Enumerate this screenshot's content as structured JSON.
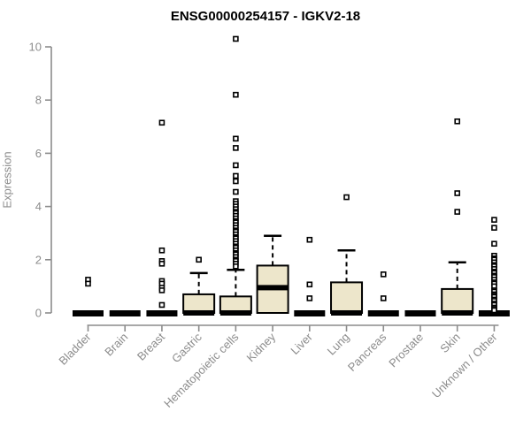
{
  "chart_data": {
    "type": "boxplot",
    "title": "ENSG00000254157 - IGKV2-18",
    "ylabel": "Expression",
    "xlabel": "",
    "ylim": [
      0,
      10
    ],
    "yticks": [
      0,
      2,
      4,
      6,
      8,
      10
    ],
    "grid": false,
    "legend": "none",
    "colors": {
      "box_fill": "#ede6cb",
      "box_stroke": "#000000",
      "median": "#000000",
      "outlier_stroke": "#000000",
      "axis": "#8c8c8c",
      "tick_label": "#8c8c8c",
      "title": "#000000",
      "background": "#ffffff"
    },
    "categories": [
      "Bladder",
      "Brain",
      "Breast",
      "Gastric",
      "Hematopoietic cells",
      "Kidney",
      "Liver",
      "Lung",
      "Pancreas",
      "Prostate",
      "Skin",
      "Unknown / Other"
    ],
    "series": [
      {
        "category": "Bladder",
        "slug": "bladder",
        "q1": 0,
        "median": 0,
        "q3": 0,
        "whisker_low": 0,
        "whisker_high": 0,
        "outliers": [
          1.25,
          1.1
        ]
      },
      {
        "category": "Brain",
        "slug": "brain",
        "q1": 0,
        "median": 0,
        "q3": 0,
        "whisker_low": 0,
        "whisker_high": 0,
        "outliers": []
      },
      {
        "category": "Breast",
        "slug": "breast",
        "q1": 0,
        "median": 0,
        "q3": 0,
        "whisker_low": 0,
        "whisker_high": 0,
        "outliers": [
          7.15,
          2.35,
          1.95,
          1.85,
          1.2,
          1.1,
          0.95,
          0.85,
          0.3
        ]
      },
      {
        "category": "Gastric",
        "slug": "gastric",
        "q1": 0,
        "median": 0,
        "q3": 0.7,
        "whisker_low": 0,
        "whisker_high": 1.5,
        "outliers": [
          2.0
        ]
      },
      {
        "category": "Hematopoietic cells",
        "slug": "hematopoietic-cells",
        "q1": 0,
        "median": 0,
        "q3": 0.62,
        "whisker_low": 0,
        "whisker_high": 1.62,
        "outliers": [
          10.3,
          8.2,
          6.55,
          6.2,
          5.55,
          5.15,
          4.95,
          4.55,
          4.2,
          4.1,
          4.0,
          3.9,
          3.8,
          3.75,
          3.65,
          3.55,
          3.45,
          3.4,
          3.3,
          3.2,
          3.1,
          3.05,
          2.95,
          2.85,
          2.8,
          2.7,
          2.6,
          2.5,
          2.45,
          2.35,
          2.25,
          2.2,
          2.1,
          2.0,
          1.95,
          1.85,
          1.75
        ]
      },
      {
        "category": "Kidney",
        "slug": "kidney",
        "q1": 0,
        "median": 0.95,
        "q3": 1.78,
        "whisker_low": 0,
        "whisker_high": 2.9,
        "outliers": []
      },
      {
        "category": "Liver",
        "slug": "liver",
        "q1": 0,
        "median": 0,
        "q3": 0,
        "whisker_low": 0,
        "whisker_high": 0,
        "outliers": [
          2.75,
          1.07,
          0.55
        ]
      },
      {
        "category": "Lung",
        "slug": "lung",
        "q1": 0,
        "median": 0,
        "q3": 1.15,
        "whisker_low": 0,
        "whisker_high": 2.35,
        "outliers": [
          4.35
        ]
      },
      {
        "category": "Pancreas",
        "slug": "pancreas",
        "q1": 0,
        "median": 0,
        "q3": 0,
        "whisker_low": 0,
        "whisker_high": 0,
        "outliers": [
          1.45,
          0.55
        ]
      },
      {
        "category": "Prostate",
        "slug": "prostate",
        "q1": 0,
        "median": 0,
        "q3": 0,
        "whisker_low": 0,
        "whisker_high": 0,
        "outliers": []
      },
      {
        "category": "Skin",
        "slug": "skin",
        "q1": 0,
        "median": 0,
        "q3": 0.9,
        "whisker_low": 0,
        "whisker_high": 1.9,
        "outliers": [
          7.2,
          4.5,
          3.8
        ]
      },
      {
        "category": "Unknown / Other",
        "slug": "unknown-other",
        "q1": 0,
        "median": 0,
        "q3": 0,
        "whisker_low": 0,
        "whisker_high": 0,
        "outliers": [
          3.5,
          3.2,
          2.6,
          2.15,
          2.05,
          2.0,
          1.9,
          1.8,
          1.75,
          1.65,
          1.55,
          1.5,
          1.4,
          1.35,
          1.25,
          1.15,
          1.1,
          1.0,
          0.85,
          0.8,
          0.7,
          0.65,
          0.6,
          0.5,
          0.45,
          0.35,
          0.3,
          0.2,
          0.15,
          0.1
        ]
      }
    ]
  }
}
